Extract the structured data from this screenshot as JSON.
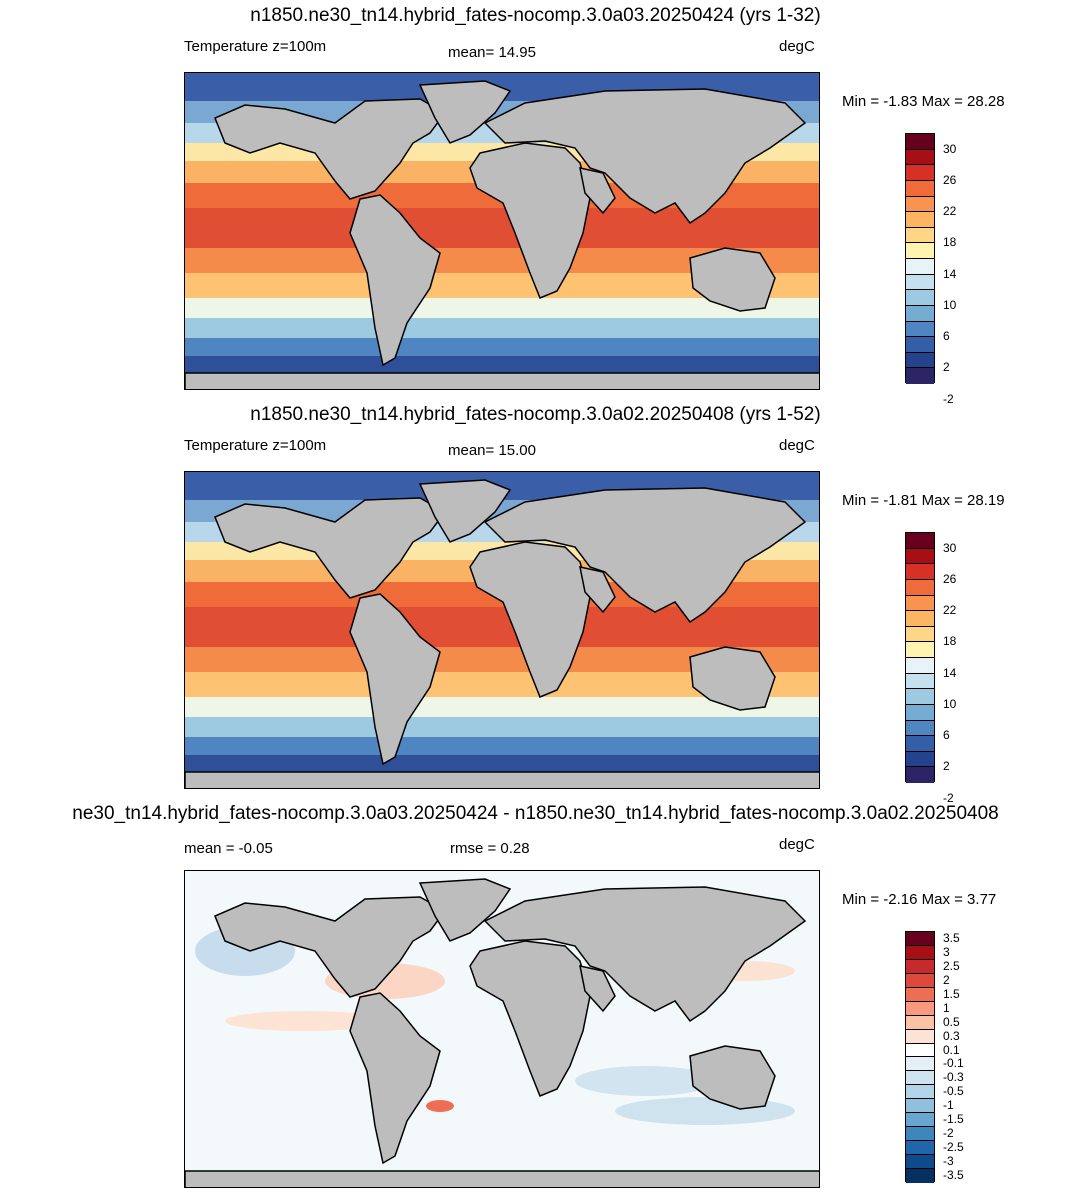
{
  "panels": [
    {
      "title": "n1850.ne30_tn14.hybrid_fates-nocomp.3.0a03.20250424 (yrs 1-32)",
      "left_label": "Temperature z=100m",
      "center_label": "mean=  14.95",
      "units": "degC",
      "minmax": "Min =  -1.83 Max =  28.28",
      "colorbar": {
        "colors": [
          "#67001f",
          "#a50f15",
          "#d73027",
          "#ef6b3a",
          "#f99352",
          "#fdb463",
          "#fed685",
          "#fff3b0",
          "#e8f3f8",
          "#c6e1ee",
          "#9ecae1",
          "#74add1",
          "#4f85c0",
          "#335fa8",
          "#24438c",
          "#2d2466"
        ],
        "labels": [
          "30",
          "26",
          "22",
          "18",
          "14",
          "10",
          "6",
          "2",
          "-2"
        ]
      }
    },
    {
      "title": "n1850.ne30_tn14.hybrid_fates-nocomp.3.0a02.20250408 (yrs 1-52)",
      "left_label": "Temperature z=100m",
      "center_label": "mean=  15.00",
      "units": "degC",
      "minmax": "Min =  -1.81 Max =  28.19",
      "colorbar": {
        "colors": [
          "#67001f",
          "#a50f15",
          "#d73027",
          "#ef6b3a",
          "#f99352",
          "#fdb463",
          "#fed685",
          "#fff3b0",
          "#e8f3f8",
          "#c6e1ee",
          "#9ecae1",
          "#74add1",
          "#4f85c0",
          "#335fa8",
          "#24438c",
          "#2d2466"
        ],
        "labels": [
          "30",
          "26",
          "22",
          "18",
          "14",
          "10",
          "6",
          "2",
          "-2"
        ]
      }
    },
    {
      "title": "ne30_tn14.hybrid_fates-nocomp.3.0a03.20250424 - n1850.ne30_tn14.hybrid_fates-nocomp.3.0a02.20250408",
      "left_label": "mean =  -0.05",
      "center_label": "rmse =   0.28",
      "units": "degC",
      "minmax": "Min =  -2.16 Max =   3.77",
      "colorbar": {
        "colors": [
          "#67001f",
          "#a50f15",
          "#c62a2c",
          "#dd4a3c",
          "#ee6e55",
          "#f79a7d",
          "#fbc3a6",
          "#fde3d3",
          "#ffffff",
          "#e5eff6",
          "#cfe3ef",
          "#b3d3e8",
          "#8fc0dc",
          "#66a6cf",
          "#3f86bd",
          "#2166ac",
          "#0f4b8a",
          "#053061"
        ],
        "labels": [
          "3.5",
          "3",
          "2.5",
          "2",
          "1.5",
          "1",
          "0.5",
          "0.3",
          "0.1",
          "-0.1",
          "-0.3",
          "-0.5",
          "-1",
          "-1.5",
          "-2",
          "-2.5",
          "-3",
          "-3.5"
        ]
      }
    }
  ],
  "land_color": "#bdbdbd"
}
